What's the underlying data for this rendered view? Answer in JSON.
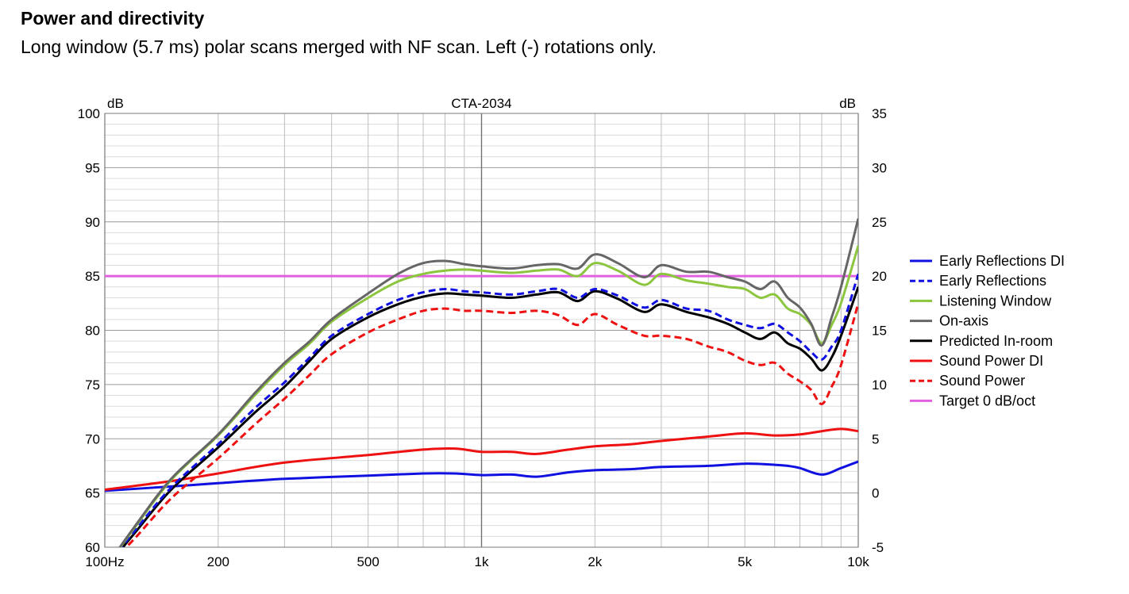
{
  "page": {
    "heading": "Power and directivity",
    "subheading": "Long window (5.7 ms) polar scans merged with NF scan.  Left (-) rotations only."
  },
  "chart_data": {
    "type": "line",
    "title": "CTA-2034",
    "x_scale": "log",
    "xlim": [
      100,
      10000
    ],
    "x_ticks": [
      {
        "value": 100,
        "label": "100Hz"
      },
      {
        "value": 200,
        "label": "200"
      },
      {
        "value": 500,
        "label": "500"
      },
      {
        "value": 1000,
        "label": "1k"
      },
      {
        "value": 2000,
        "label": "2k"
      },
      {
        "value": 5000,
        "label": "5k"
      },
      {
        "value": 10000,
        "label": "10k"
      }
    ],
    "y_left": {
      "unit": "dB",
      "range": [
        60,
        100
      ],
      "ticks": [
        60,
        65,
        70,
        75,
        80,
        85,
        90,
        95,
        100
      ]
    },
    "y_right": {
      "unit": "dB",
      "range": [
        -5,
        35
      ],
      "ticks": [
        -5,
        0,
        5,
        10,
        15,
        20,
        25,
        30,
        35
      ]
    },
    "grid": true,
    "legend_position": "right",
    "series": [
      {
        "name": "Early Reflections DI",
        "color": "#1010e0",
        "dash": false,
        "axis": "right",
        "points": [
          [
            100,
            0.2
          ],
          [
            150,
            0.6
          ],
          [
            200,
            0.9
          ],
          [
            300,
            1.3
          ],
          [
            500,
            1.6
          ],
          [
            700,
            1.8
          ],
          [
            850,
            1.8
          ],
          [
            1000,
            1.65
          ],
          [
            1200,
            1.7
          ],
          [
            1400,
            1.5
          ],
          [
            1700,
            1.9
          ],
          [
            2000,
            2.1
          ],
          [
            2500,
            2.2
          ],
          [
            3000,
            2.4
          ],
          [
            4000,
            2.5
          ],
          [
            5000,
            2.7
          ],
          [
            6000,
            2.6
          ],
          [
            6500,
            2.5
          ],
          [
            7000,
            2.3
          ],
          [
            8000,
            1.7
          ],
          [
            9000,
            2.3
          ],
          [
            10000,
            2.9
          ]
        ]
      },
      {
        "name": "Early Reflections",
        "color": "#1010e0",
        "dash": true,
        "axis": "left",
        "points": [
          [
            100,
            58
          ],
          [
            120,
            61.5
          ],
          [
            150,
            65.5
          ],
          [
            200,
            69.5
          ],
          [
            250,
            72.8
          ],
          [
            300,
            75.2
          ],
          [
            350,
            77.5
          ],
          [
            400,
            79.5
          ],
          [
            500,
            81.5
          ],
          [
            600,
            82.8
          ],
          [
            700,
            83.5
          ],
          [
            800,
            83.8
          ],
          [
            900,
            83.6
          ],
          [
            1000,
            83.5
          ],
          [
            1200,
            83.3
          ],
          [
            1400,
            83.6
          ],
          [
            1600,
            83.8
          ],
          [
            1800,
            83.0
          ],
          [
            2000,
            83.8
          ],
          [
            2300,
            83.2
          ],
          [
            2700,
            82.1
          ],
          [
            3000,
            82.8
          ],
          [
            3500,
            82.0
          ],
          [
            4000,
            81.8
          ],
          [
            4500,
            81.0
          ],
          [
            5000,
            80.5
          ],
          [
            5500,
            80.2
          ],
          [
            6000,
            80.6
          ],
          [
            6500,
            79.8
          ],
          [
            7000,
            79.0
          ],
          [
            7500,
            78.0
          ],
          [
            8000,
            77.3
          ],
          [
            8500,
            78.5
          ],
          [
            9000,
            80.0
          ],
          [
            10000,
            85.2
          ]
        ]
      },
      {
        "name": "Listening Window",
        "color": "#8cc63f",
        "dash": false,
        "axis": "left",
        "points": [
          [
            100,
            58
          ],
          [
            120,
            61.8
          ],
          [
            150,
            66.2
          ],
          [
            200,
            70.3
          ],
          [
            250,
            74.0
          ],
          [
            300,
            76.8
          ],
          [
            350,
            78.8
          ],
          [
            400,
            80.8
          ],
          [
            500,
            83.0
          ],
          [
            600,
            84.5
          ],
          [
            700,
            85.2
          ],
          [
            800,
            85.5
          ],
          [
            900,
            85.6
          ],
          [
            1000,
            85.5
          ],
          [
            1200,
            85.3
          ],
          [
            1400,
            85.5
          ],
          [
            1600,
            85.6
          ],
          [
            1800,
            85.0
          ],
          [
            2000,
            86.2
          ],
          [
            2300,
            85.5
          ],
          [
            2700,
            84.2
          ],
          [
            3000,
            85.2
          ],
          [
            3500,
            84.6
          ],
          [
            4000,
            84.3
          ],
          [
            4500,
            84.0
          ],
          [
            5000,
            83.8
          ],
          [
            5500,
            83.0
          ],
          [
            6000,
            83.3
          ],
          [
            6500,
            82.0
          ],
          [
            7000,
            81.5
          ],
          [
            7500,
            80.5
          ],
          [
            8000,
            78.8
          ],
          [
            8500,
            80.5
          ],
          [
            9000,
            82.5
          ],
          [
            10000,
            87.8
          ]
        ]
      },
      {
        "name": "On-axis",
        "color": "#666666",
        "dash": false,
        "axis": "left",
        "points": [
          [
            100,
            58
          ],
          [
            120,
            61.9
          ],
          [
            150,
            66.3
          ],
          [
            200,
            70.4
          ],
          [
            250,
            74.2
          ],
          [
            300,
            77.0
          ],
          [
            350,
            79.0
          ],
          [
            400,
            81.0
          ],
          [
            500,
            83.4
          ],
          [
            600,
            85.2
          ],
          [
            700,
            86.2
          ],
          [
            800,
            86.4
          ],
          [
            900,
            86.1
          ],
          [
            1000,
            85.9
          ],
          [
            1200,
            85.7
          ],
          [
            1400,
            86.0
          ],
          [
            1600,
            86.1
          ],
          [
            1800,
            85.7
          ],
          [
            2000,
            87.0
          ],
          [
            2300,
            86.2
          ],
          [
            2700,
            84.9
          ],
          [
            3000,
            86.0
          ],
          [
            3500,
            85.4
          ],
          [
            4000,
            85.4
          ],
          [
            4500,
            84.9
          ],
          [
            5000,
            84.5
          ],
          [
            5500,
            83.8
          ],
          [
            6000,
            84.5
          ],
          [
            6500,
            83.0
          ],
          [
            7000,
            82.1
          ],
          [
            7500,
            80.6
          ],
          [
            8000,
            78.6
          ],
          [
            8500,
            81.2
          ],
          [
            9000,
            84.0
          ],
          [
            10000,
            90.3
          ]
        ]
      },
      {
        "name": "Predicted In-room",
        "color": "#000000",
        "dash": false,
        "axis": "left",
        "points": [
          [
            100,
            58
          ],
          [
            120,
            61.3
          ],
          [
            150,
            65.3
          ],
          [
            200,
            69.2
          ],
          [
            250,
            72.4
          ],
          [
            300,
            74.8
          ],
          [
            350,
            77.2
          ],
          [
            400,
            79.2
          ],
          [
            500,
            81.2
          ],
          [
            600,
            82.4
          ],
          [
            700,
            83.1
          ],
          [
            800,
            83.4
          ],
          [
            900,
            83.3
          ],
          [
            1000,
            83.2
          ],
          [
            1200,
            83.0
          ],
          [
            1400,
            83.3
          ],
          [
            1600,
            83.5
          ],
          [
            1800,
            82.7
          ],
          [
            2000,
            83.6
          ],
          [
            2300,
            82.9
          ],
          [
            2700,
            81.7
          ],
          [
            3000,
            82.4
          ],
          [
            3500,
            81.7
          ],
          [
            4000,
            81.2
          ],
          [
            4500,
            80.6
          ],
          [
            5000,
            79.8
          ],
          [
            5500,
            79.2
          ],
          [
            6000,
            79.8
          ],
          [
            6500,
            78.8
          ],
          [
            7000,
            78.3
          ],
          [
            7500,
            77.4
          ],
          [
            8000,
            76.3
          ],
          [
            8500,
            77.5
          ],
          [
            9000,
            79.5
          ],
          [
            10000,
            84.0
          ]
        ]
      },
      {
        "name": "Sound Power DI",
        "color": "#ee1111",
        "dash": false,
        "axis": "right",
        "points": [
          [
            100,
            0.3
          ],
          [
            150,
            1.1
          ],
          [
            200,
            1.8
          ],
          [
            300,
            2.8
          ],
          [
            500,
            3.5
          ],
          [
            700,
            4.0
          ],
          [
            850,
            4.1
          ],
          [
            1000,
            3.8
          ],
          [
            1200,
            3.8
          ],
          [
            1400,
            3.6
          ],
          [
            1700,
            4.0
          ],
          [
            2000,
            4.3
          ],
          [
            2500,
            4.5
          ],
          [
            3000,
            4.8
          ],
          [
            4000,
            5.2
          ],
          [
            5000,
            5.5
          ],
          [
            6000,
            5.3
          ],
          [
            7000,
            5.4
          ],
          [
            8000,
            5.7
          ],
          [
            9000,
            5.9
          ],
          [
            10000,
            5.7
          ]
        ]
      },
      {
        "name": "Sound Power",
        "color": "#ee1111",
        "dash": true,
        "axis": "left",
        "points": [
          [
            100,
            58
          ],
          [
            120,
            60.8
          ],
          [
            150,
            64.5
          ],
          [
            200,
            68.2
          ],
          [
            250,
            71.3
          ],
          [
            300,
            73.7
          ],
          [
            350,
            75.9
          ],
          [
            400,
            77.8
          ],
          [
            500,
            79.8
          ],
          [
            600,
            81.0
          ],
          [
            700,
            81.8
          ],
          [
            800,
            82.0
          ],
          [
            900,
            81.8
          ],
          [
            1000,
            81.8
          ],
          [
            1200,
            81.6
          ],
          [
            1400,
            81.8
          ],
          [
            1600,
            81.4
          ],
          [
            1800,
            80.5
          ],
          [
            2000,
            81.5
          ],
          [
            2300,
            80.5
          ],
          [
            2700,
            79.5
          ],
          [
            3000,
            79.5
          ],
          [
            3500,
            79.2
          ],
          [
            4000,
            78.5
          ],
          [
            4500,
            78.0
          ],
          [
            5000,
            77.2
          ],
          [
            5500,
            76.8
          ],
          [
            6000,
            77.0
          ],
          [
            6500,
            76.0
          ],
          [
            7000,
            75.3
          ],
          [
            7500,
            74.5
          ],
          [
            8000,
            73.2
          ],
          [
            8500,
            74.8
          ],
          [
            9000,
            76.8
          ],
          [
            10000,
            82.5
          ]
        ]
      },
      {
        "name": "Target 0 dB/oct",
        "color": "#e060e0",
        "dash": false,
        "axis": "left",
        "points": [
          [
            100,
            85
          ],
          [
            10000,
            85
          ]
        ]
      }
    ]
  }
}
